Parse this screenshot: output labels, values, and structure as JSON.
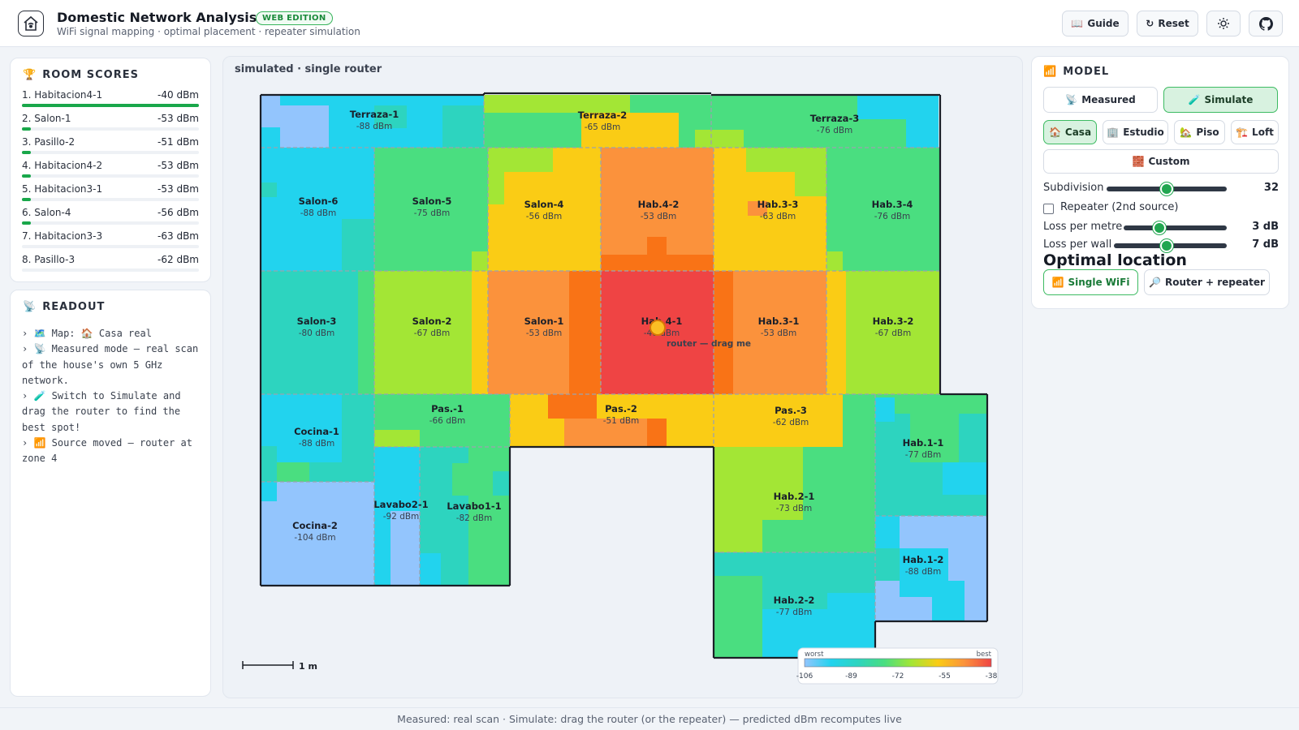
{
  "header": {
    "title": "Domestic Network Analysis",
    "edition": "WEB EDITION",
    "subtitle": "WiFi signal mapping · optimal placement · repeater simulation",
    "buttons": {
      "guide": "Guide",
      "reset": "Reset"
    }
  },
  "room_scores": {
    "title": "ROOM SCORES",
    "items": [
      {
        "name": "1. Habitacion4-1",
        "value": "-40 dBm",
        "fill": 1.0
      },
      {
        "name": "2. Salon-1",
        "value": "-53 dBm",
        "fill": 0.05
      },
      {
        "name": "3. Pasillo-2",
        "value": "-51 dBm",
        "fill": 0.05
      },
      {
        "name": "4. Habitacion4-2",
        "value": "-53 dBm",
        "fill": 0.05
      },
      {
        "name": "5. Habitacion3-1",
        "value": "-53 dBm",
        "fill": 0.05
      },
      {
        "name": "6. Salon-4",
        "value": "-56 dBm",
        "fill": 0.03
      },
      {
        "name": "7. Habitacion3-3",
        "value": "-63 dBm",
        "fill": 0.0
      },
      {
        "name": "8. Pasillo-3",
        "value": "-62 dBm",
        "fill": 0.0
      }
    ]
  },
  "readout": {
    "title": "READOUT",
    "lines": [
      "› 🗺️ Map: 🏠 Casa real",
      "› 📡 Measured mode — real scan of the house's own 5 GHz network.",
      "› 🧪 Switch to Simulate and drag the router to find the best spot!",
      "› 📶 Source moved — router at zone 4"
    ]
  },
  "map": {
    "label": "simulated · single router",
    "router_hint": "router — drag me",
    "scale_label": "1 m",
    "zones": [
      {
        "name": "Terraza-1",
        "db": "-88 dBm"
      },
      {
        "name": "Terraza-2",
        "db": "-65 dBm"
      },
      {
        "name": "Terraza-3",
        "db": "-76 dBm"
      },
      {
        "name": "Salon-6",
        "db": "-88 dBm"
      },
      {
        "name": "Salon-5",
        "db": "-75 dBm"
      },
      {
        "name": "Salon-4",
        "db": "-56 dBm"
      },
      {
        "name": "Hab.4-2",
        "db": "-53 dBm"
      },
      {
        "name": "Hab.3-3",
        "db": "-63 dBm"
      },
      {
        "name": "Hab.3-4",
        "db": "-76 dBm"
      },
      {
        "name": "Salon-3",
        "db": "-80 dBm"
      },
      {
        "name": "Salon-2",
        "db": "-67 dBm"
      },
      {
        "name": "Salon-1",
        "db": "-53 dBm"
      },
      {
        "name": "Hab.4-1",
        "db": "-40 dBm"
      },
      {
        "name": "Hab.3-1",
        "db": "-53 dBm"
      },
      {
        "name": "Hab.3-2",
        "db": "-67 dBm"
      },
      {
        "name": "Cocina-1",
        "db": "-88 dBm"
      },
      {
        "name": "Pas.-1",
        "db": "-66 dBm"
      },
      {
        "name": "Pas.-2",
        "db": "-51 dBm"
      },
      {
        "name": "Pas.-3",
        "db": "-62 dBm"
      },
      {
        "name": "Hab.1-1",
        "db": "-77 dBm"
      },
      {
        "name": "Cocina-2",
        "db": "-104 dBm"
      },
      {
        "name": "Lavabo2-1",
        "db": "-92 dBm"
      },
      {
        "name": "Lavabo1-1",
        "db": "-82 dBm"
      },
      {
        "name": "Hab.2-1",
        "db": "-73 dBm"
      },
      {
        "name": "Hab.1-2",
        "db": "-88 dBm"
      },
      {
        "name": "Hab.2-2",
        "db": "-77 dBm"
      }
    ],
    "legend": {
      "worst": "worst",
      "best": "best",
      "ticks": [
        "-106",
        "-89",
        "-72",
        "-55",
        "-38"
      ],
      "colors": [
        "#93c5fd",
        "#22d3ee",
        "#2dd4bf",
        "#4ade80",
        "#a3e635",
        "#facc15",
        "#fb923c",
        "#ef4444"
      ]
    }
  },
  "model": {
    "title": "MODEL",
    "modes": {
      "measured": "Measured",
      "simulate": "Simulate",
      "active": "simulate"
    },
    "maps": {
      "casa": "Casa",
      "estudio": "Estudio",
      "piso": "Piso",
      "loft": "Loft",
      "custom": "Custom",
      "active": "casa"
    },
    "subdivision": {
      "label": "Subdivision",
      "value": "32",
      "level": 0.5
    },
    "repeater": {
      "label": "Repeater (2nd source)",
      "checked": false
    },
    "loss_metre": {
      "label": "Loss per metre",
      "value": "3 dB",
      "level": 0.35
    },
    "loss_wall": {
      "label": "Loss per wall",
      "value": "7 dB",
      "level": 0.47
    },
    "optimal": {
      "title": "Optimal location",
      "single": "Single WiFi",
      "router_repeater": "Router + repeater"
    }
  },
  "footer": {
    "text": "Measured: real scan · Simulate: drag the router (or the repeater) — predicted dBm recomputes live"
  },
  "colors": {
    "accent": "#19a74a",
    "heat_worst": "#93c5fd",
    "heat_best": "#ef4444"
  }
}
